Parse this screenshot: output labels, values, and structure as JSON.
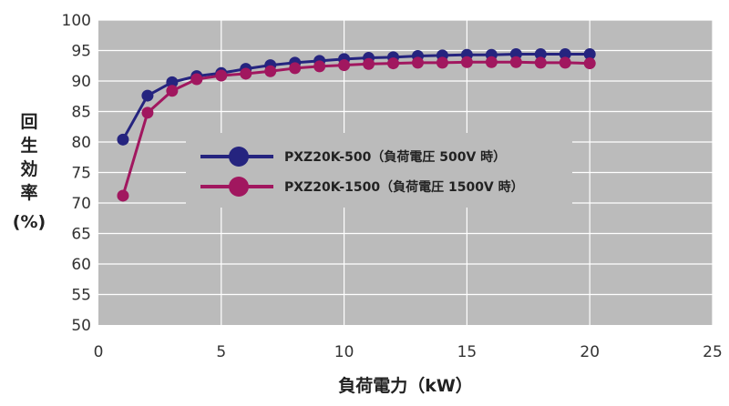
{
  "chart_data": {
    "type": "line",
    "xlabel": "負荷電力（kW）",
    "ylabel": "回生効率(%)",
    "ylabel_lines": [
      "回",
      "生",
      "効",
      "率",
      "(%)"
    ],
    "xlim": [
      0,
      25
    ],
    "ylim": [
      50,
      100
    ],
    "x_ticks": [
      0,
      5,
      10,
      15,
      20,
      25
    ],
    "y_ticks": [
      50,
      55,
      60,
      65,
      70,
      75,
      80,
      85,
      90,
      95,
      100
    ],
    "grid": true,
    "plot_background": "#bbbbbb",
    "legend_position": "center",
    "x": [
      1,
      2,
      3,
      4,
      5,
      6,
      7,
      8,
      9,
      10,
      11,
      12,
      13,
      14,
      15,
      16,
      17,
      18,
      19,
      20
    ],
    "series": [
      {
        "name": "PXZ20K-500（負荷電圧 500V 時）",
        "color": "#25247f",
        "values": [
          80.4,
          87.6,
          89.8,
          90.8,
          91.3,
          92.0,
          92.6,
          93.0,
          93.3,
          93.6,
          93.8,
          93.9,
          94.1,
          94.2,
          94.3,
          94.3,
          94.4,
          94.4,
          94.4,
          94.4
        ]
      },
      {
        "name": "PXZ20K-1500（負荷電圧 1500V 時）",
        "color": "#a1175f",
        "values": [
          71.2,
          84.8,
          88.4,
          90.3,
          90.9,
          91.2,
          91.6,
          92.1,
          92.4,
          92.6,
          92.8,
          92.9,
          93.0,
          93.0,
          93.1,
          93.1,
          93.1,
          93.0,
          93.0,
          92.9
        ]
      }
    ]
  }
}
